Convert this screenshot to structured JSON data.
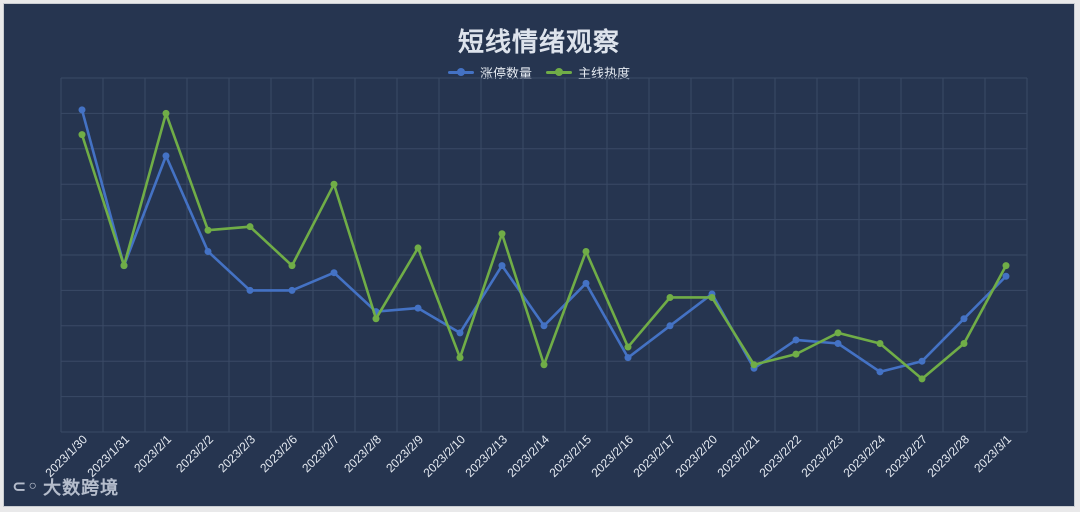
{
  "colors": {
    "background": "#263550",
    "grid": "#3a4a66",
    "text": "#e6ebf2",
    "series_blue": "#4472c4",
    "series_green": "#70ad47"
  },
  "watermark": {
    "icon": "brand-logo-icon",
    "text": "大数跨境"
  },
  "chart_data": {
    "type": "line",
    "title": "短线情绪观察",
    "legend_position": "top",
    "grid": true,
    "categories": [
      "2023/1/30",
      "2023/1/31",
      "2023/2/1",
      "2023/2/2",
      "2023/2/3",
      "2023/2/6",
      "2023/2/7",
      "2023/2/8",
      "2023/2/9",
      "2023/2/10",
      "2023/2/13",
      "2023/2/14",
      "2023/2/15",
      "2023/2/16",
      "2023/2/17",
      "2023/2/20",
      "2023/2/21",
      "2023/2/22",
      "2023/2/23",
      "2023/2/24",
      "2023/2/27",
      "2023/2/28",
      "2023/3/1"
    ],
    "ylim": [
      0,
      100
    ],
    "series": [
      {
        "name": "涨停数量",
        "color": "#4472c4",
        "values": [
          91,
          47,
          78,
          51,
          40,
          40,
          45,
          34,
          35,
          28,
          47,
          30,
          42,
          21,
          30,
          39,
          18,
          26,
          25,
          17,
          20,
          32,
          44
        ]
      },
      {
        "name": "主线热度",
        "color": "#70ad47",
        "values": [
          84,
          47,
          90,
          57,
          58,
          47,
          70,
          32,
          52,
          21,
          56,
          19,
          51,
          24,
          38,
          38,
          19,
          22,
          28,
          25,
          15,
          25,
          47
        ]
      }
    ]
  }
}
